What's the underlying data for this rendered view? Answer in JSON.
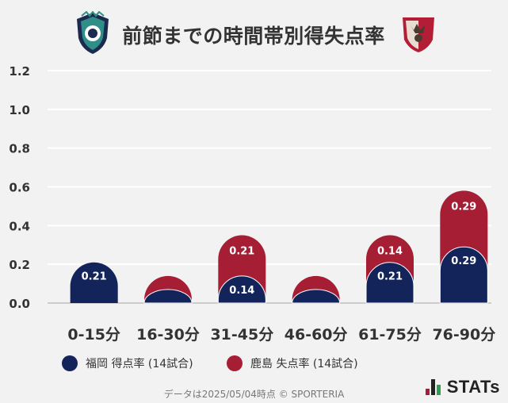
{
  "header": {
    "title": "前節までの時間帯別得失点率",
    "home_emblem": "fukuoka-crest-icon",
    "away_emblem": "kashima-crest-icon"
  },
  "colors": {
    "home": "#13245a",
    "away": "#a61e34",
    "background": "#f2f2f2",
    "grid": "#ffffff"
  },
  "chart_data": {
    "type": "bar",
    "title": "前節までの時間帯別得失点率",
    "categories": [
      "0-15分",
      "16-30分",
      "31-45分",
      "46-60分",
      "61-75分",
      "76-90分"
    ],
    "series": [
      {
        "name": "福岡 得点率 (14試合)",
        "values": [
          0.21,
          0.07,
          0.14,
          0.07,
          0.21,
          0.29
        ],
        "labels": [
          "0.21",
          "",
          "0.14",
          "",
          "0.21",
          "0.29"
        ]
      },
      {
        "name": "鹿島 失点率 (14試合)",
        "values": [
          0.0,
          0.07,
          0.21,
          0.07,
          0.14,
          0.29
        ],
        "labels": [
          "",
          "",
          "0.21",
          "",
          "0.14",
          "0.29"
        ]
      }
    ],
    "stacked": true,
    "ylim": [
      0,
      1.2
    ],
    "yticks": [
      "0.0",
      "0.2",
      "0.4",
      "0.6",
      "0.8",
      "1.0",
      "1.2"
    ],
    "xlabel": "",
    "ylabel": "",
    "grid": true
  },
  "legend": {
    "home_label": "福岡 得点率 (14試合)",
    "away_label": "鹿島 失点率 (14試合)"
  },
  "footer": {
    "text": "データは2025/05/04時点 © SPORTERIA"
  },
  "brand": {
    "name": "STATs"
  }
}
